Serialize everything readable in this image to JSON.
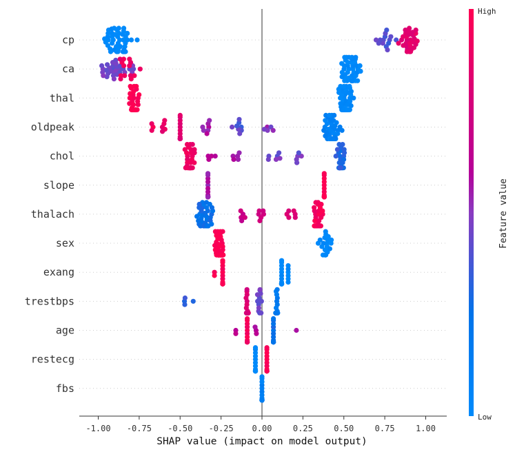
{
  "chart_data": {
    "type": "scatter",
    "subtype": "shap-beeswarm",
    "title": "",
    "xlabel": "SHAP value (impact on model output)",
    "ylabel": "",
    "xlim": [
      -1.1,
      1.12
    ],
    "xticks": [
      -1.0,
      -0.75,
      -0.5,
      -0.25,
      0.0,
      0.25,
      0.5,
      0.75,
      1.0
    ],
    "xtick_labels": [
      "-1.00",
      "-0.75",
      "-0.50",
      "-0.25",
      "0.00",
      "0.25",
      "0.50",
      "0.75",
      "1.00"
    ],
    "zero_line": 0.0,
    "grid": "dotted-horizontal-per-feature",
    "colorbar": {
      "label": "Feature value",
      "high_label": "High",
      "low_label": "Low",
      "low_color": "#008afb",
      "mid_color": "#7b4fd0",
      "high_color": "#ff0052",
      "placement": "right"
    },
    "features": [
      {
        "name": "cp",
        "clusters": [
          {
            "x": -0.88,
            "spread": 0.13,
            "n": 45,
            "color": 0.0
          },
          {
            "x": 0.75,
            "spread": 0.1,
            "n": 14,
            "color": 0.4
          },
          {
            "x": 0.9,
            "spread": 0.09,
            "n": 30,
            "color": 0.85
          }
        ]
      },
      {
        "name": "ca",
        "clusters": [
          {
            "x": -0.88,
            "spread": 0.14,
            "n": 30,
            "color": 0.45
          },
          {
            "x": -0.82,
            "spread": 0.1,
            "n": 14,
            "color": 0.9
          },
          {
            "x": 0.54,
            "spread": 0.09,
            "n": 45,
            "color": 0.0
          }
        ]
      },
      {
        "name": "thal",
        "clusters": [
          {
            "x": -0.78,
            "spread": 0.05,
            "n": 40,
            "color": 1.0
          },
          {
            "x": 0.51,
            "spread": 0.06,
            "n": 55,
            "color": 0.0
          }
        ]
      },
      {
        "name": "oldpeak",
        "clusters": [
          {
            "x": -0.67,
            "spread": 0.01,
            "n": 3,
            "color": 0.95
          },
          {
            "x": -0.6,
            "spread": 0.02,
            "n": 5,
            "color": 0.85
          },
          {
            "x": -0.5,
            "spread": 0.0,
            "n": 14,
            "color": 0.8
          },
          {
            "x": -0.34,
            "spread": 0.04,
            "n": 7,
            "color": 0.55
          },
          {
            "x": -0.15,
            "spread": 0.05,
            "n": 8,
            "color": 0.4
          },
          {
            "x": 0.05,
            "spread": 0.05,
            "n": 5,
            "color": 0.5
          },
          {
            "x": 0.43,
            "spread": 0.07,
            "n": 48,
            "color": 0.1
          }
        ]
      },
      {
        "name": "chol",
        "clusters": [
          {
            "x": -0.44,
            "spread": 0.04,
            "n": 32,
            "color": 0.9
          },
          {
            "x": -0.3,
            "spread": 0.04,
            "n": 4,
            "color": 0.6
          },
          {
            "x": -0.16,
            "spread": 0.04,
            "n": 5,
            "color": 0.55
          },
          {
            "x": 0.08,
            "spread": 0.05,
            "n": 6,
            "color": 0.45
          },
          {
            "x": 0.23,
            "spread": 0.04,
            "n": 5,
            "color": 0.45
          },
          {
            "x": 0.48,
            "spread": 0.04,
            "n": 30,
            "color": 0.3
          }
        ]
      },
      {
        "name": "slope",
        "clusters": [
          {
            "x": -0.33,
            "spread": 0.0,
            "n": 38,
            "color": 0.55
          },
          {
            "x": 0.38,
            "spread": 0.0,
            "n": 30,
            "color": 1.0
          }
        ]
      },
      {
        "name": "thalach",
        "clusters": [
          {
            "x": -0.35,
            "spread": 0.08,
            "n": 38,
            "color": 0.25
          },
          {
            "x": -0.12,
            "spread": 0.04,
            "n": 5,
            "color": 0.7
          },
          {
            "x": 0.0,
            "spread": 0.03,
            "n": 6,
            "color": 0.75
          },
          {
            "x": 0.18,
            "spread": 0.05,
            "n": 6,
            "color": 0.8
          },
          {
            "x": 0.34,
            "spread": 0.04,
            "n": 35,
            "color": 0.95
          }
        ]
      },
      {
        "name": "sex",
        "clusters": [
          {
            "x": -0.26,
            "spread": 0.04,
            "n": 55,
            "color": 1.0
          },
          {
            "x": 0.39,
            "spread": 0.06,
            "n": 20,
            "color": 0.0
          }
        ]
      },
      {
        "name": "exang",
        "clusters": [
          {
            "x": -0.29,
            "spread": 0.0,
            "n": 2,
            "color": 1.0
          },
          {
            "x": -0.24,
            "spread": 0.0,
            "n": 14,
            "color": 1.0
          },
          {
            "x": 0.12,
            "spread": 0.0,
            "n": 24,
            "color": 0.0
          },
          {
            "x": 0.16,
            "spread": 0.0,
            "n": 6,
            "color": 0.0
          }
        ]
      },
      {
        "name": "trestbps",
        "clusters": [
          {
            "x": -0.47,
            "spread": 0.01,
            "n": 3,
            "color": 0.35
          },
          {
            "x": -0.42,
            "spread": 0.0,
            "n": 1,
            "color": 0.35
          },
          {
            "x": -0.09,
            "spread": 0.01,
            "n": 30,
            "color": 0.8
          },
          {
            "x": -0.02,
            "spread": 0.03,
            "n": 12,
            "color": 0.45
          },
          {
            "x": 0.09,
            "spread": 0.01,
            "n": 26,
            "color": 0.15
          }
        ]
      },
      {
        "name": "age",
        "clusters": [
          {
            "x": -0.16,
            "spread": 0.0,
            "n": 2,
            "color": 0.65
          },
          {
            "x": -0.09,
            "spread": 0.0,
            "n": 24,
            "color": 0.95
          },
          {
            "x": -0.03,
            "spread": 0.02,
            "n": 3,
            "color": 0.6
          },
          {
            "x": 0.07,
            "spread": 0.0,
            "n": 28,
            "color": 0.25
          },
          {
            "x": 0.21,
            "spread": 0.0,
            "n": 1,
            "color": 0.6
          }
        ]
      },
      {
        "name": "restecg",
        "clusters": [
          {
            "x": -0.04,
            "spread": 0.0,
            "n": 28,
            "color": 0.0
          },
          {
            "x": 0.03,
            "spread": 0.0,
            "n": 28,
            "color": 1.0
          }
        ]
      },
      {
        "name": "fbs",
        "clusters": [
          {
            "x": 0.0,
            "spread": 0.0,
            "n": 50,
            "color": 0.1
          }
        ]
      }
    ]
  }
}
